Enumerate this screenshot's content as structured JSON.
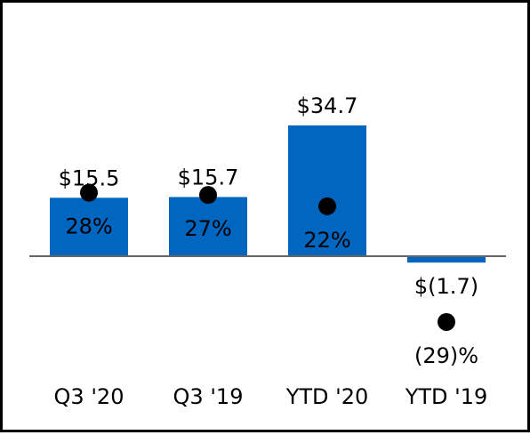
{
  "chart_data": {
    "type": "bar",
    "categories": [
      "Q3 '20",
      "Q3 '19",
      "YTD '20",
      "YTD '19"
    ],
    "series": [
      {
        "values": [
          15.5,
          15.7,
          34.7,
          -1.7
        ],
        "value_labels": [
          "$15.5",
          "$15.7",
          "$34.7",
          "$(1.7)"
        ],
        "color": "#0066bf"
      },
      {
        "marker": "dot",
        "values": [
          28,
          27,
          22,
          -29
        ],
        "value_labels": [
          "28%",
          "27%",
          "22%",
          "(29)%"
        ],
        "color": "#000000"
      }
    ],
    "baseline_color": "#666666"
  }
}
